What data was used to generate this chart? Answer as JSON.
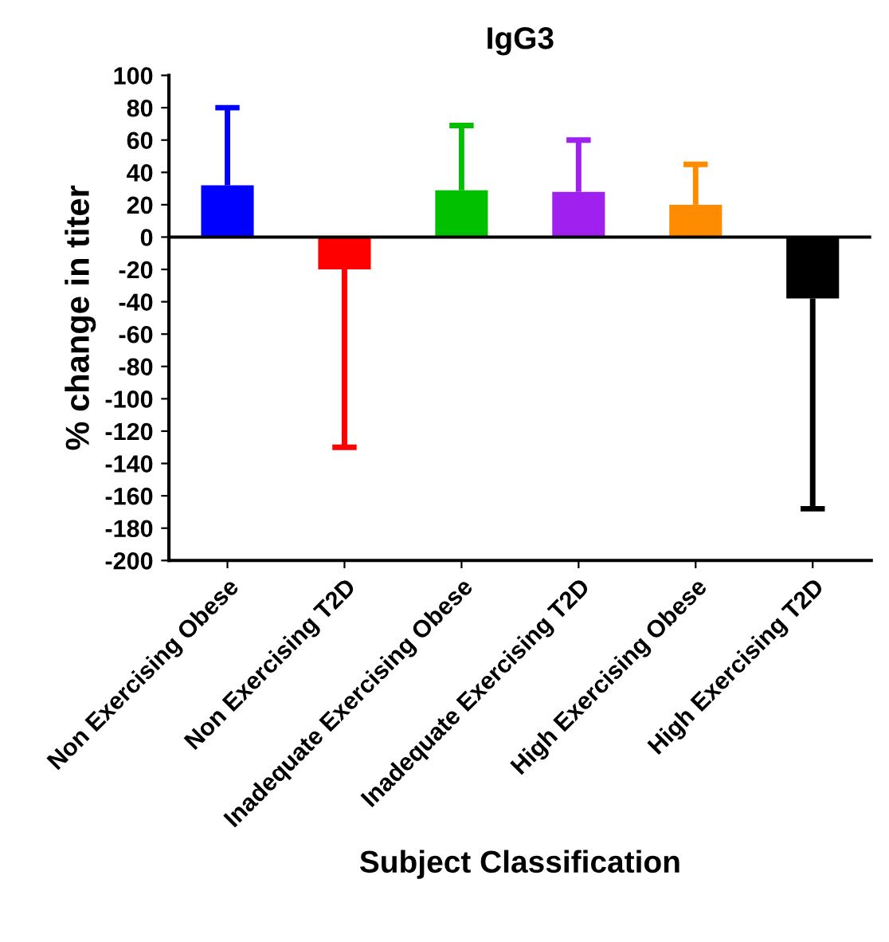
{
  "chart_data": {
    "type": "bar",
    "title": "IgG3",
    "xlabel": "Subject Classification",
    "ylabel": "% change in titer",
    "categories": [
      "Non Exercising Obese",
      "Non Exercising T2D",
      "Inadequate Exercising Obese",
      "Inadequate Exercising T2D",
      "High Exercising Obese",
      "High Exercising T2D"
    ],
    "values": [
      32,
      -20,
      29,
      28,
      20,
      -38
    ],
    "colors": [
      "#0000ff",
      "#ff0000",
      "#00c000",
      "#a020f0",
      "#ff8c00",
      "#000000"
    ],
    "errors": [
      [
        32,
        80
      ],
      [
        -130,
        -20
      ],
      [
        29,
        69
      ],
      [
        28,
        60
      ],
      [
        20,
        45
      ],
      [
        -168,
        -38
      ]
    ],
    "ylim": [
      -200,
      100
    ],
    "yticks": [
      -200,
      -180,
      -160,
      -140,
      -120,
      -100,
      -80,
      -60,
      -40,
      -20,
      0,
      20,
      40,
      60,
      80,
      100
    ],
    "ref_lines": [
      {
        "axis": "y",
        "value": 0,
        "color": "#000000"
      }
    ],
    "grid": false,
    "legend": false
  }
}
